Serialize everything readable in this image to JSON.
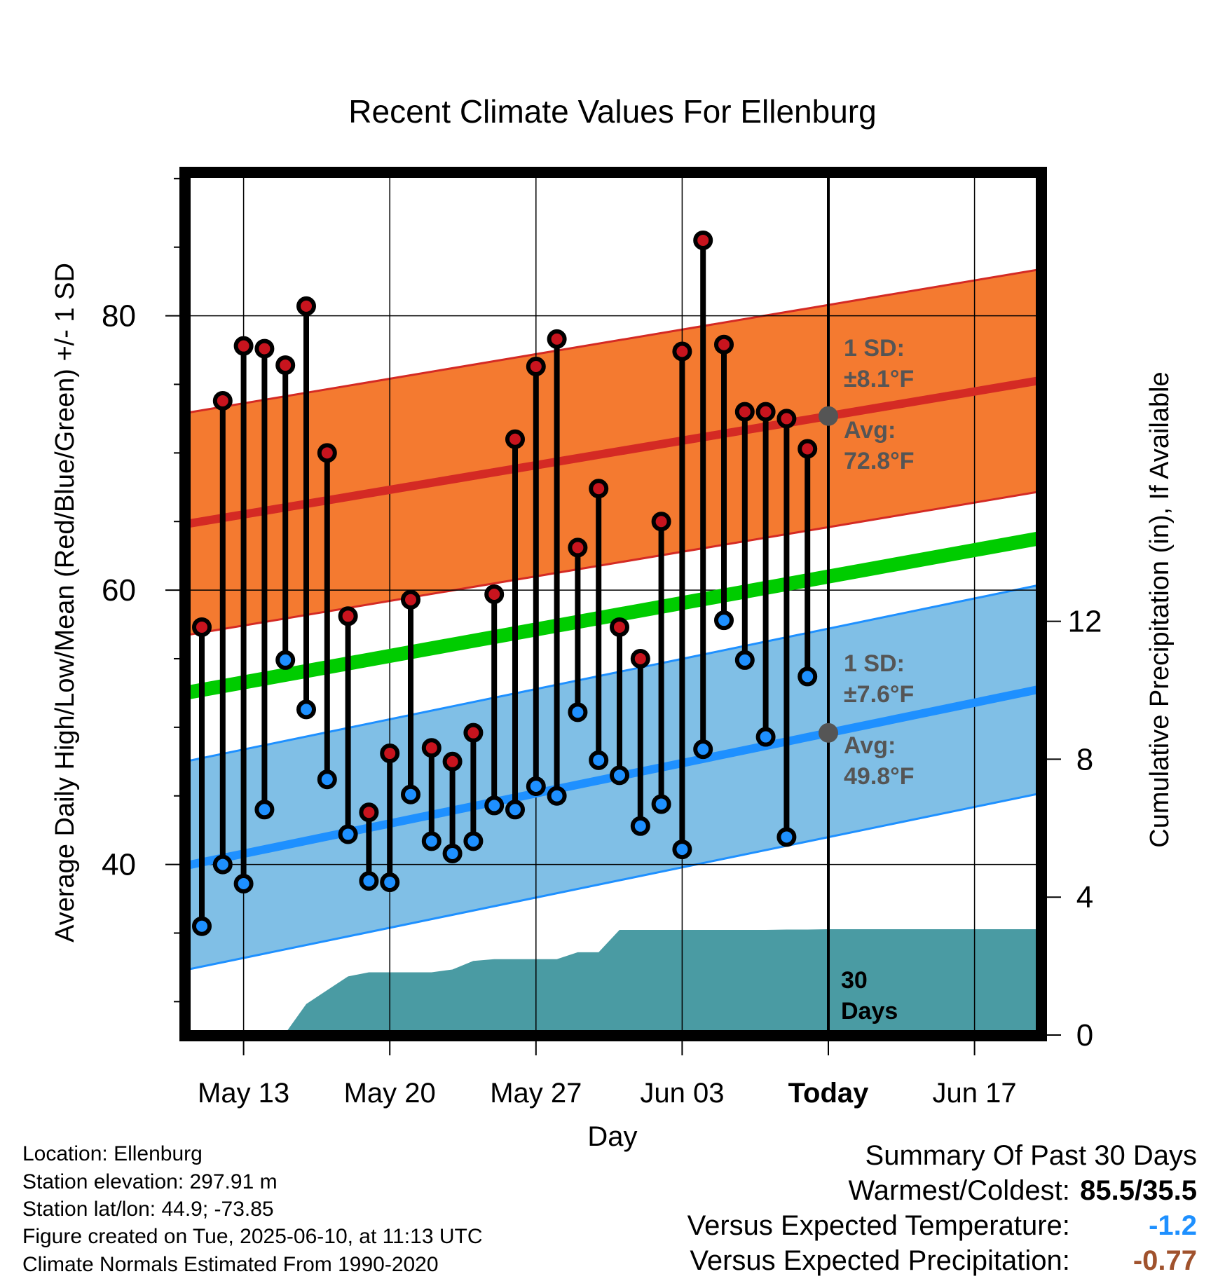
{
  "chart_data": {
    "type": "line",
    "title": "Recent Climate Values For Ellenburg",
    "xlabel": "Day",
    "ylabel": "Average Daily High/Low/Mean (Red/Blue/Green) +/- 1 SD",
    "y2label": "Cumulative Precipitation (in), If Available",
    "ylim": [
      28,
      90
    ],
    "y2lim": [
      0,
      30
    ],
    "yticks": [
      "40",
      "60",
      "80"
    ],
    "y2ticks": [
      "0",
      "4",
      "8",
      "12"
    ],
    "xticks": [
      "May 13",
      "May 20",
      "May 27",
      "Jun 03",
      "Today",
      "Jun 17"
    ],
    "grid": true,
    "days": [
      "May 11",
      "May 12",
      "May 13",
      "May 14",
      "May 15",
      "May 16",
      "May 17",
      "May 18",
      "May 19",
      "May 20",
      "May 21",
      "May 22",
      "May 23",
      "May 24",
      "May 25",
      "May 26",
      "May 27",
      "May 28",
      "May 29",
      "May 30",
      "May 31",
      "Jun 01",
      "Jun 02",
      "Jun 03",
      "Jun 04",
      "Jun 05",
      "Jun 06",
      "Jun 07",
      "Jun 08",
      "Jun 09"
    ],
    "series": [
      {
        "name": "High",
        "color": "#c8141e",
        "values": [
          57.3,
          73.8,
          77.8,
          77.6,
          76.4,
          80.7,
          70.0,
          58.1,
          43.8,
          48.1,
          59.3,
          48.5,
          47.5,
          49.6,
          59.7,
          71.0,
          76.3,
          78.3,
          63.1,
          67.4,
          57.3,
          55.0,
          65.0,
          77.4,
          85.5,
          77.9,
          73.0,
          73.0,
          72.5,
          70.3
        ]
      },
      {
        "name": "Low",
        "color": "#1e90ff",
        "values": [
          35.5,
          40.0,
          38.6,
          44.0,
          54.9,
          51.3,
          46.2,
          42.2,
          38.8,
          38.7,
          45.1,
          41.7,
          40.8,
          41.7,
          44.3,
          44.0,
          45.7,
          45.0,
          51.1,
          47.6,
          46.5,
          42.8,
          44.4,
          41.1,
          48.4,
          57.8,
          54.9,
          49.3,
          42.0,
          53.7
        ]
      }
    ],
    "normal_high": {
      "start": 64.8,
      "end": 75.3,
      "sd": 8.1
    },
    "normal_low": {
      "start": 39.9,
      "end": 52.8,
      "sd": 7.6
    },
    "normal_mean": {
      "start": 52.5,
      "end": 63.8
    },
    "precip_cum": [
      0,
      0,
      0,
      0,
      0.05,
      0.9,
      1.3,
      1.7,
      1.82,
      1.82,
      1.82,
      1.82,
      1.9,
      2.15,
      2.2,
      2.2,
      2.2,
      2.2,
      2.4,
      2.4,
      3.05,
      3.05,
      3.05,
      3.05,
      3.05,
      3.05,
      3.05,
      3.05,
      3.06,
      3.06,
      3.07
    ],
    "annotations": {
      "high_sd": "1 SD:",
      "high_sd_val": "±8.1°F",
      "high_avg": "Avg:",
      "high_avg_val": "72.8°F",
      "low_sd": "1 SD:",
      "low_sd_val": "±7.6°F",
      "low_avg": "Avg:",
      "low_avg_val": "49.8°F",
      "window_num": "30",
      "window_unit": "Days"
    }
  },
  "footer": {
    "location": "Location: Ellenburg",
    "elevation": "Station elevation: 297.91 m",
    "latlon": "Station lat/lon: 44.9; -73.85",
    "created": "Figure created on Tue, 2025-06-10, at 11:13 UTC",
    "normals": "Climate Normals Estimated From 1990-2020"
  },
  "summary": {
    "heading": "Summary Of Past 30 Days",
    "warm_label": "Warmest/Coldest:",
    "warm_value": "85.5/35.5",
    "temp_label": "Versus Expected Temperature:",
    "temp_value": "-1.2",
    "temp_color": "#1e90ff",
    "precip_label": "Versus Expected Precipitation:",
    "precip_value": "-0.77",
    "precip_color": "#a0522d"
  },
  "colors": {
    "high_band": "#f47a30",
    "high_line": "#d42a24",
    "low_band": "#80bfe6",
    "low_line": "#1e90ff",
    "mean_line": "#00cc00",
    "precip": "#4a9ba3",
    "high_dot": "#c8141e",
    "low_dot": "#1e90ff",
    "avg_marker": "#555555",
    "annotation": "#555555"
  }
}
